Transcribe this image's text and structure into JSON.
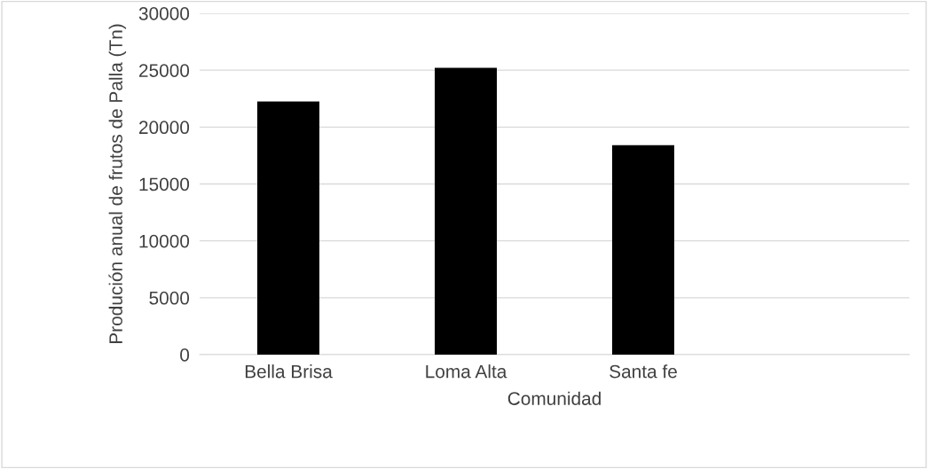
{
  "chart_data": {
    "type": "bar",
    "categories": [
      "Bella Brisa",
      "Loma Alta",
      "Santa fe",
      null
    ],
    "values": [
      22250,
      25200,
      18400,
      null
    ],
    "color": "#000000",
    "xlabel": "Comunidad",
    "ylabel": "Produción anual de frutos de Palla (Tn)",
    "ylim": [
      0,
      30000
    ],
    "yticks": [
      0,
      5000,
      10000,
      15000,
      20000,
      25000,
      30000
    ],
    "grid": "y"
  }
}
